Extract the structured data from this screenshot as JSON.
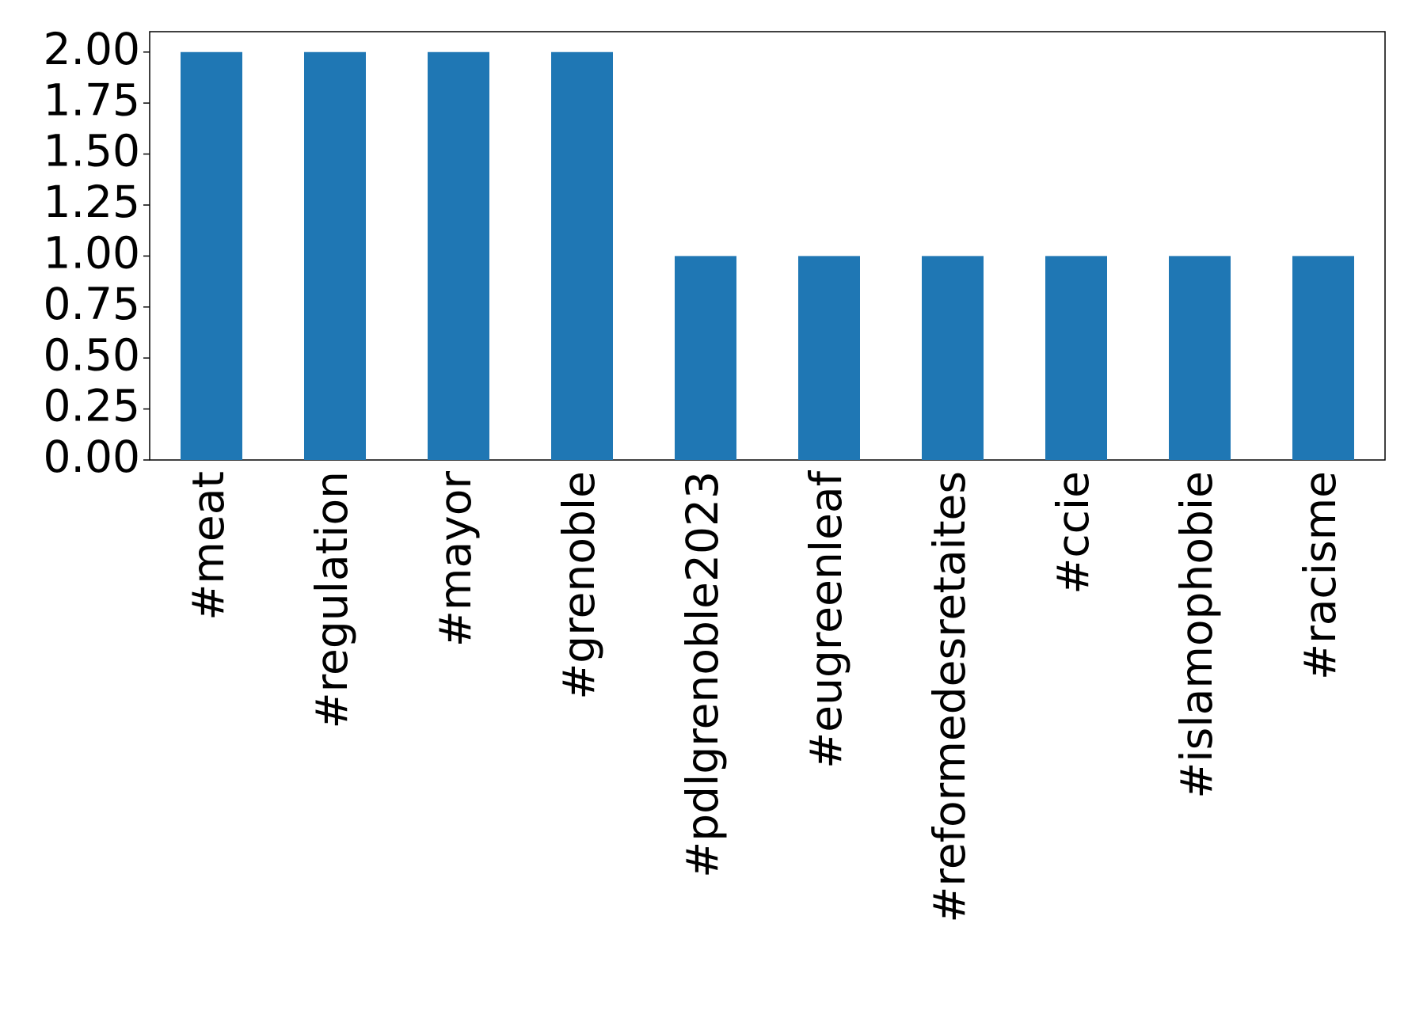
{
  "chart_data": {
    "type": "bar",
    "categories": [
      "#meat",
      "#regulation",
      "#mayor",
      "#grenoble",
      "#pdlgrenoble2023",
      "#eugreenleaf",
      "#reformedesretaites",
      "#ccie",
      "#islamophobie",
      "#racisme"
    ],
    "values": [
      2,
      2,
      2,
      2,
      1,
      1,
      1,
      1,
      1,
      1
    ],
    "color": "#1f77b4",
    "ylim": [
      0,
      2.1
    ],
    "yticks": [
      {
        "value": 0,
        "label": "0.00"
      },
      {
        "value": 0.25,
        "label": "0.25"
      },
      {
        "value": 0.5,
        "label": "0.50"
      },
      {
        "value": 0.75,
        "label": "0.75"
      },
      {
        "value": 1,
        "label": "1.00"
      },
      {
        "value": 1.25,
        "label": "1.25"
      },
      {
        "value": 1.5,
        "label": "1.50"
      },
      {
        "value": 1.75,
        "label": "1.75"
      },
      {
        "value": 2,
        "label": "2.00"
      }
    ],
    "grid": false
  }
}
